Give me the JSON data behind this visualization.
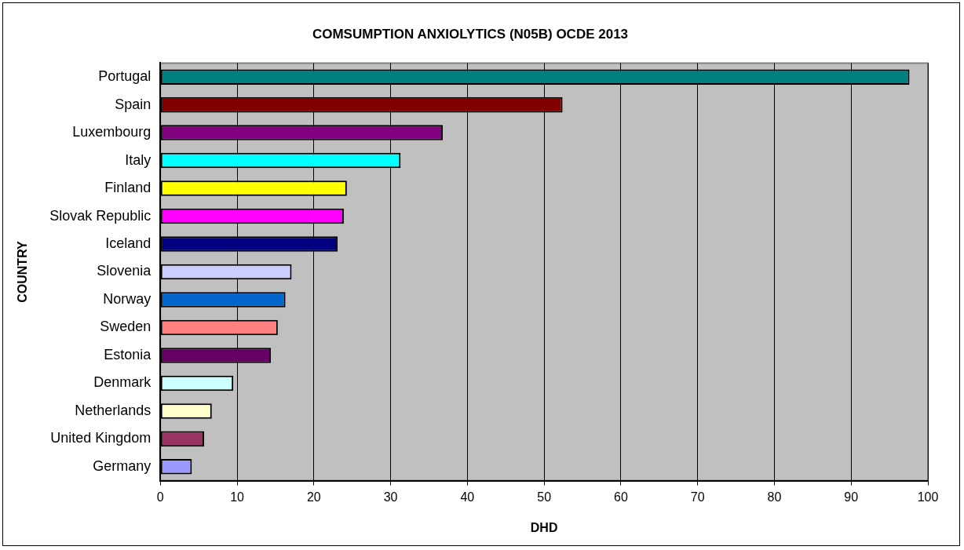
{
  "chart_data": {
    "type": "bar",
    "orientation": "horizontal",
    "title": "COMSUMPTION ANXIOLYTICS (N05B) OCDE 2013",
    "xlabel": "DHD",
    "ylabel": "COUNTRY",
    "categories": [
      "Portugal",
      "Spain",
      "Luxembourg",
      "Italy",
      "Finland",
      "Slovak Republic",
      "Iceland",
      "Slovenia",
      "Norway",
      "Sweden",
      "Estonia",
      "Denmark",
      "Netherlands",
      "United Kingdom",
      "Germany"
    ],
    "values": [
      97.6,
      52.4,
      36.8,
      31.3,
      24.3,
      23.9,
      23.1,
      17.1,
      16.3,
      15.3,
      14.4,
      9.5,
      6.7,
      5.7,
      4.1
    ],
    "colors": [
      "#008080",
      "#800000",
      "#800080",
      "#00ffff",
      "#ffff00",
      "#ff00ff",
      "#000080",
      "#ccccff",
      "#0066cc",
      "#ff8080",
      "#660066",
      "#ccffff",
      "#ffffcc",
      "#993366",
      "#9999ff"
    ],
    "xlim": [
      0,
      100
    ],
    "xticks": [
      0,
      10,
      20,
      30,
      40,
      50,
      60,
      70,
      80,
      90,
      100
    ],
    "grid": "x",
    "legend": false
  }
}
